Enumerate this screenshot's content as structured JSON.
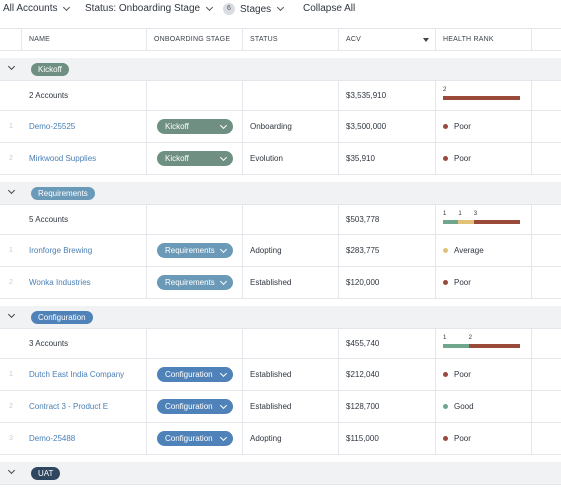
{
  "toolbar": {
    "all_accounts": "All Accounts",
    "status_filter": "Status: Onboarding Stage",
    "stages_count": "6",
    "stages_label": "Stages",
    "collapse_all": "Collapse All"
  },
  "columns": {
    "name": "NAME",
    "onboarding_stage": "ONBOARDING STAGE",
    "status": "STATUS",
    "acv": "ACV",
    "health_rank": "HEALTH RANK"
  },
  "colors": {
    "kickoff": "#6f8f82",
    "requirements": "#6a9ab8",
    "configuration": "#4f82b8",
    "uat": "#2f4660",
    "poor": "#9a4a3b",
    "average": "#e2c277",
    "good": "#6fa68c"
  },
  "groups": [
    {
      "label": "Kickoff",
      "summary": {
        "accounts": "2 Accounts",
        "acv": "$3,535,910",
        "health_labels": [
          "2"
        ]
      },
      "health_bar": [
        {
          "status": "poor",
          "fraction": 1.0,
          "label": "2"
        }
      ],
      "rows": [
        {
          "num": "1",
          "name": "Demo-25525",
          "stage": "Kickoff",
          "status": "Onboarding",
          "acv": "$3,500,000",
          "health": "Poor",
          "health_color": "poor"
        },
        {
          "num": "2",
          "name": "Mirkwood Supplies",
          "stage": "Kickoff",
          "status": "Evolution",
          "acv": "$35,910",
          "health": "Poor",
          "health_color": "poor"
        }
      ]
    },
    {
      "label": "Requirements",
      "summary": {
        "accounts": "5 Accounts",
        "acv": "$503,778"
      },
      "health_bar": [
        {
          "status": "good",
          "fraction": 0.2,
          "label": "1"
        },
        {
          "status": "average",
          "fraction": 0.2,
          "label": "1"
        },
        {
          "status": "poor",
          "fraction": 0.6,
          "label": "3"
        }
      ],
      "rows": [
        {
          "num": "1",
          "name": "Ironforge Brewing",
          "stage": "Requirements",
          "status": "Adopting",
          "acv": "$283,775",
          "health": "Average",
          "health_color": "average"
        },
        {
          "num": "2",
          "name": "Wonka Industries",
          "stage": "Requirements",
          "status": "Established",
          "acv": "$120,000",
          "health": "Poor",
          "health_color": "poor"
        }
      ]
    },
    {
      "label": "Configuration",
      "summary": {
        "accounts": "3 Accounts",
        "acv": "$455,740"
      },
      "health_bar": [
        {
          "status": "good",
          "fraction": 0.333,
          "label": "1"
        },
        {
          "status": "poor",
          "fraction": 0.667,
          "label": "2"
        }
      ],
      "rows": [
        {
          "num": "1",
          "name": "Dutch East India Company",
          "stage": "Configuration",
          "status": "Established",
          "acv": "$212,040",
          "health": "Poor",
          "health_color": "poor"
        },
        {
          "num": "2",
          "name": "Contract 3 - Product E",
          "stage": "Configuration",
          "status": "Established",
          "acv": "$128,700",
          "health": "Good",
          "health_color": "good"
        },
        {
          "num": "3",
          "name": "Demo-25488",
          "stage": "Configuration",
          "status": "Adopting",
          "acv": "$115,000",
          "health": "Poor",
          "health_color": "poor"
        }
      ]
    },
    {
      "label": "UAT",
      "rows": []
    }
  ]
}
